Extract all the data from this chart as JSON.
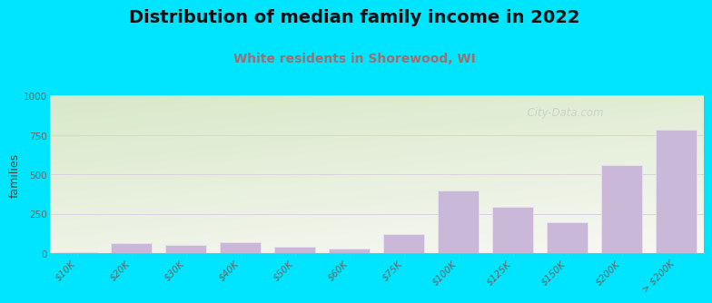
{
  "title": "Distribution of median family income in 2022",
  "subtitle": "White residents in Shorewood, WI",
  "ylabel": "families",
  "categories": [
    "$10K",
    "$20K",
    "$30K",
    "$40K",
    "$50K",
    "$60K",
    "$75K",
    "$100K",
    "$125K",
    "$150K",
    "$200K",
    "> $200K"
  ],
  "values": [
    10,
    65,
    55,
    70,
    45,
    30,
    120,
    400,
    295,
    195,
    560,
    785
  ],
  "bar_color": "#c9b8d8",
  "bar_edgecolor": "#e8e0f0",
  "background_color": "#00e5ff",
  "grad_color_top_left": "#d8e8c8",
  "grad_color_bottom_right": "#f8f8f4",
  "grid_color": "#ddd0e0",
  "title_fontsize": 14,
  "subtitle_fontsize": 10,
  "ylabel_fontsize": 9,
  "tick_fontsize": 7.5,
  "subtitle_color": "#9a7070",
  "ylim": [
    0,
    1000
  ],
  "yticks": [
    0,
    250,
    500,
    750,
    1000
  ],
  "watermark": "  City-Data.com"
}
